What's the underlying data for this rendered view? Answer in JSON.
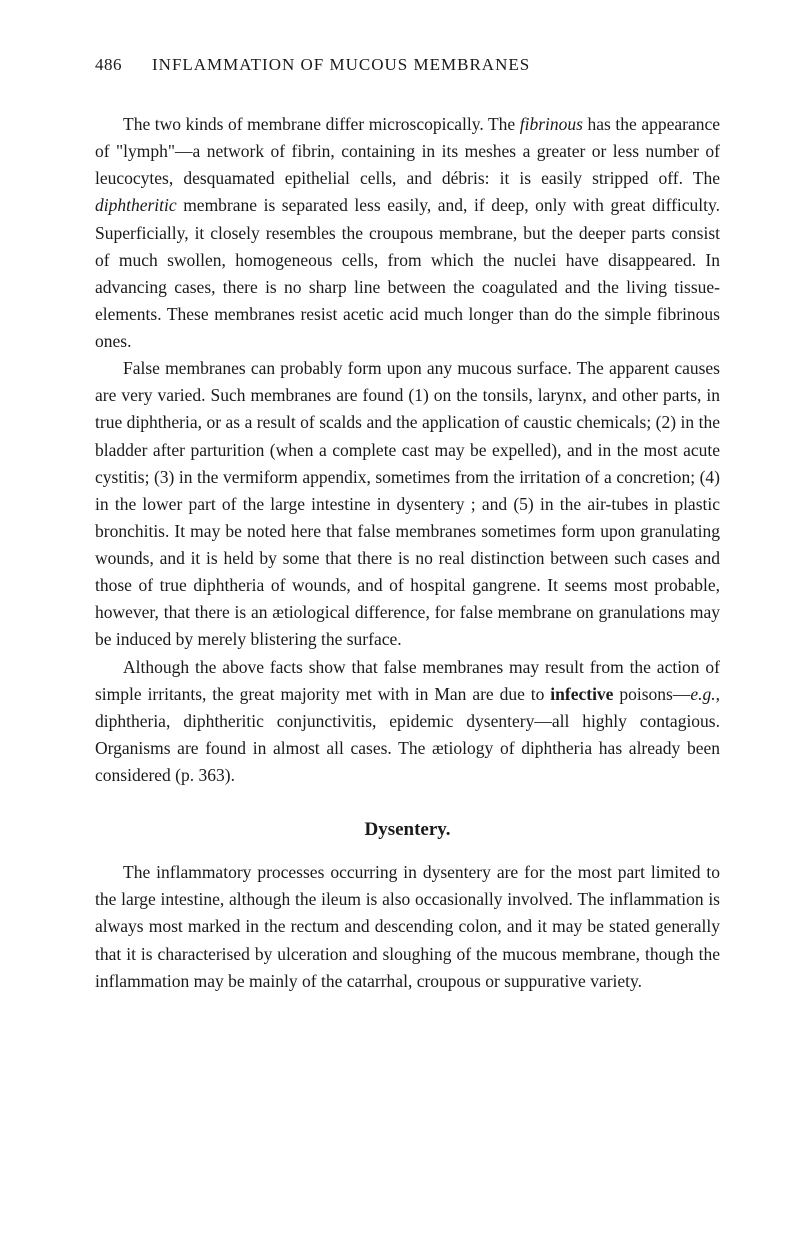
{
  "header": {
    "page_number": "486",
    "running_title": "INFLAMMATION OF MUCOUS MEMBRANES"
  },
  "paragraphs": {
    "p1": "The two kinds of membrane differ microscopically. The <em>fibrinous</em> has the appearance of \"lymph\"—a network of fibrin, containing in its meshes a greater or less number of leucocytes, desquamated epithelial cells, and débris: it is easily stripped off. The <em>diphtheritic</em> membrane is separated less easily, and, if deep, only with great difficulty. Superficially, it closely resembles the croupous membrane, but the deeper parts consist of much swollen, homogeneous cells, from which the nuclei have disappeared. In advancing cases, there is no sharp line between the coagulated and the living tissue-elements. These membranes resist acetic acid much longer than do the simple fibrinous ones.",
    "p2": "False membranes can probably form upon any mucous surface. The apparent causes are very varied. Such membranes are found (1) on the tonsils, larynx, and other parts, in true diphtheria, or as a result of scalds and the application of caustic chemicals; (2) in the bladder after parturition (when a complete cast may be expelled), and in the most acute cystitis; (3) in the vermiform appendix, sometimes from the irritation of a concretion; (4) in the lower part of the large intestine in dysentery ; and (5) in the air-tubes in plastic bronchitis. It may be noted here that false membranes sometimes form upon granulating wounds, and it is held by some that there is no real distinction between such cases and those of true diphtheria of wounds, and of hospital gangrene. It seems most probable, however, that there is an ætiological difference, for false membrane on granulations may be induced by merely blistering the surface.",
    "p3": "Although the above facts show that false membranes may result from the action of simple irritants, the great majority met with in Man are due to <strong>infective</strong> poisons—<em>e.g.</em>, diphtheria, diphtheritic conjunctivitis, epidemic dysentery—all highly contagious. Organisms are found in almost all cases. The ætiology of diphtheria has already been considered (p. 363).",
    "heading": "Dysentery.",
    "p4": "The inflammatory processes occurring in dysentery are for the most part limited to the large intestine, although the ileum is also occasionally involved. The inflammation is always most marked in the rectum and descending colon, and it may be stated generally that it is characterised by ulceration and sloughing of the mucous membrane, though the inflammation may be mainly of the catarrhal, croupous or suppurative variety."
  }
}
